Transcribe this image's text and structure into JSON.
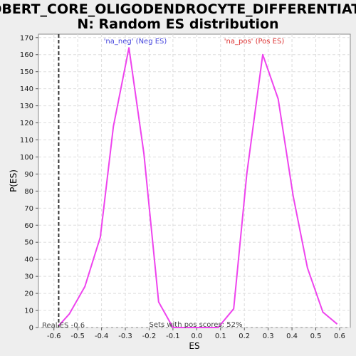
{
  "chart_data": {
    "type": "line",
    "title_line1": "GOBERT_CORE_OLIGODENDROCYTE_DIFFERENTIATIO",
    "title_line2": "N: Random ES distribution",
    "xlabel": "ES",
    "ylabel": "P(ES)",
    "xlim": [
      -0.665,
      0.645
    ],
    "ylim": [
      0,
      172
    ],
    "xticks": [
      -0.6,
      -0.5,
      -0.4,
      -0.3,
      -0.2,
      -0.1,
      0.0,
      0.1,
      0.2,
      0.3,
      0.4,
      0.5,
      0.6
    ],
    "xtick_labels": [
      "-0.6",
      "-0.5",
      "-0.4",
      "-0.3",
      "-0.2",
      "-0.1",
      "0.0",
      "0.1",
      "0.2",
      "0.3",
      "0.4",
      "0.5",
      "0.6"
    ],
    "yticks": [
      0,
      10,
      20,
      30,
      40,
      50,
      60,
      70,
      80,
      90,
      100,
      110,
      120,
      130,
      140,
      150,
      160,
      170
    ],
    "grid": true,
    "line_color": "#ee44ee",
    "series": [
      {
        "x": [
          -0.58,
          -0.535,
          -0.47,
          -0.405,
          -0.35,
          -0.285,
          -0.222,
          -0.16,
          -0.1,
          -0.04,
          0.02,
          0.09,
          0.155,
          0.21,
          0.277,
          0.342,
          0.405,
          0.465,
          0.53,
          0.59
        ],
        "values": [
          1,
          8,
          24,
          53,
          118,
          164,
          102,
          15,
          0,
          0,
          0,
          0,
          11,
          90,
          160,
          134,
          77,
          35,
          9,
          2
        ]
      }
    ],
    "real_es": {
      "value": -0.58,
      "label": "Real ES -0.6",
      "color": "#333333"
    },
    "annotations": {
      "neg_label": "'na_neg' (Neg ES)",
      "neg_color": "#4444dd",
      "pos_label": "'na_pos' (Pos ES)",
      "pos_color": "#dd3333",
      "pos_scores_label": "Sets with pos scores: 52%"
    }
  }
}
